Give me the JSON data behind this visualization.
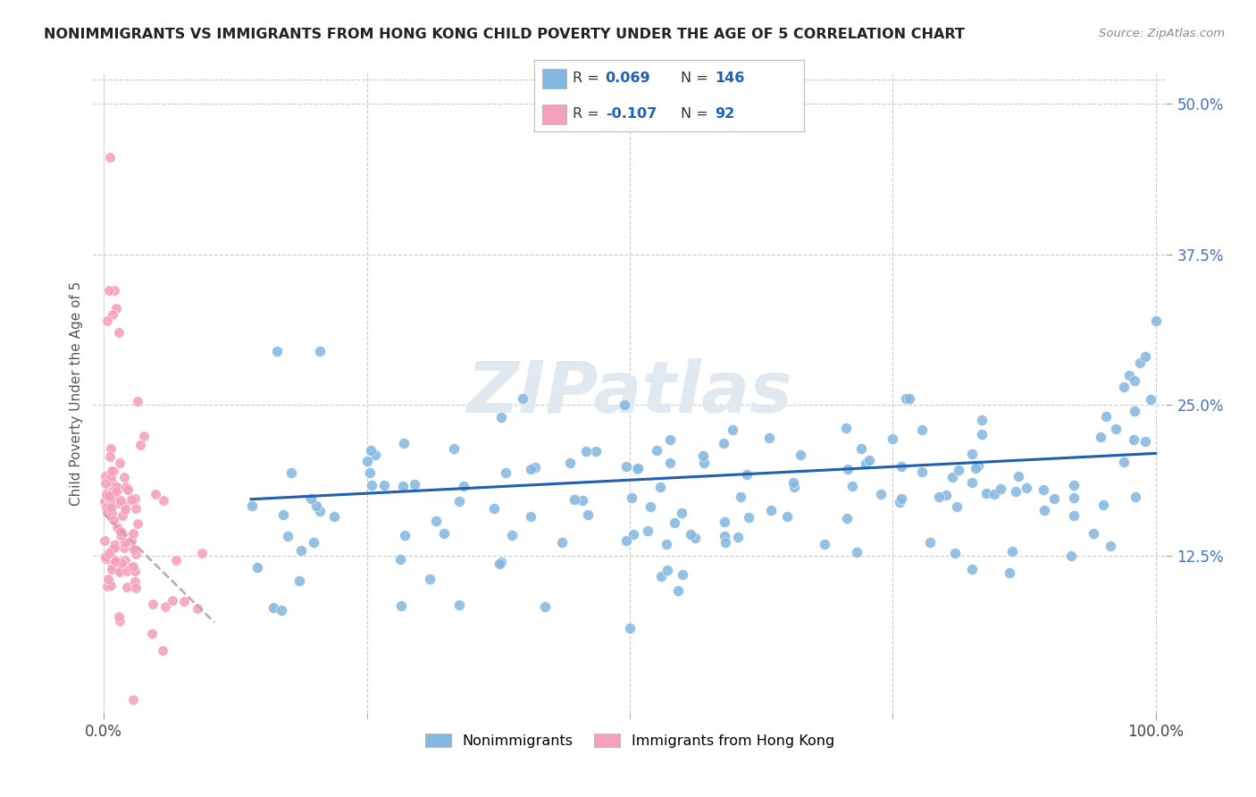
{
  "title": "NONIMMIGRANTS VS IMMIGRANTS FROM HONG KONG CHILD POVERTY UNDER THE AGE OF 5 CORRELATION CHART",
  "source": "Source: ZipAtlas.com",
  "ylabel_label": "Child Poverty Under the Age of 5",
  "legend_label1": "Nonimmigrants",
  "legend_label2": "Immigrants from Hong Kong",
  "R1": 0.069,
  "N1": 146,
  "R2": -0.107,
  "N2": 92,
  "blue_color": "#85b8e0",
  "pink_color": "#f5a0bc",
  "blue_line_color": "#2060b0",
  "pink_line_color": "#c8a0a8",
  "watermark": "ZIPatlas",
  "xlim": [
    0.0,
    1.0
  ],
  "ylim": [
    0.0,
    0.52
  ],
  "yticks": [
    0.125,
    0.25,
    0.375,
    0.5
  ],
  "ytick_labels": [
    "12.5%",
    "25.0%",
    "37.5%",
    "50.0%"
  ],
  "xtick_vals": [
    0.0,
    1.0
  ],
  "xtick_labels": [
    "0.0%",
    "100.0%"
  ],
  "blue_trend_x": [
    0.14,
    1.0
  ],
  "blue_trend_y": [
    0.172,
    0.21
  ],
  "pink_trend_x": [
    0.0,
    0.105
  ],
  "pink_trend_y": [
    0.16,
    0.07
  ]
}
